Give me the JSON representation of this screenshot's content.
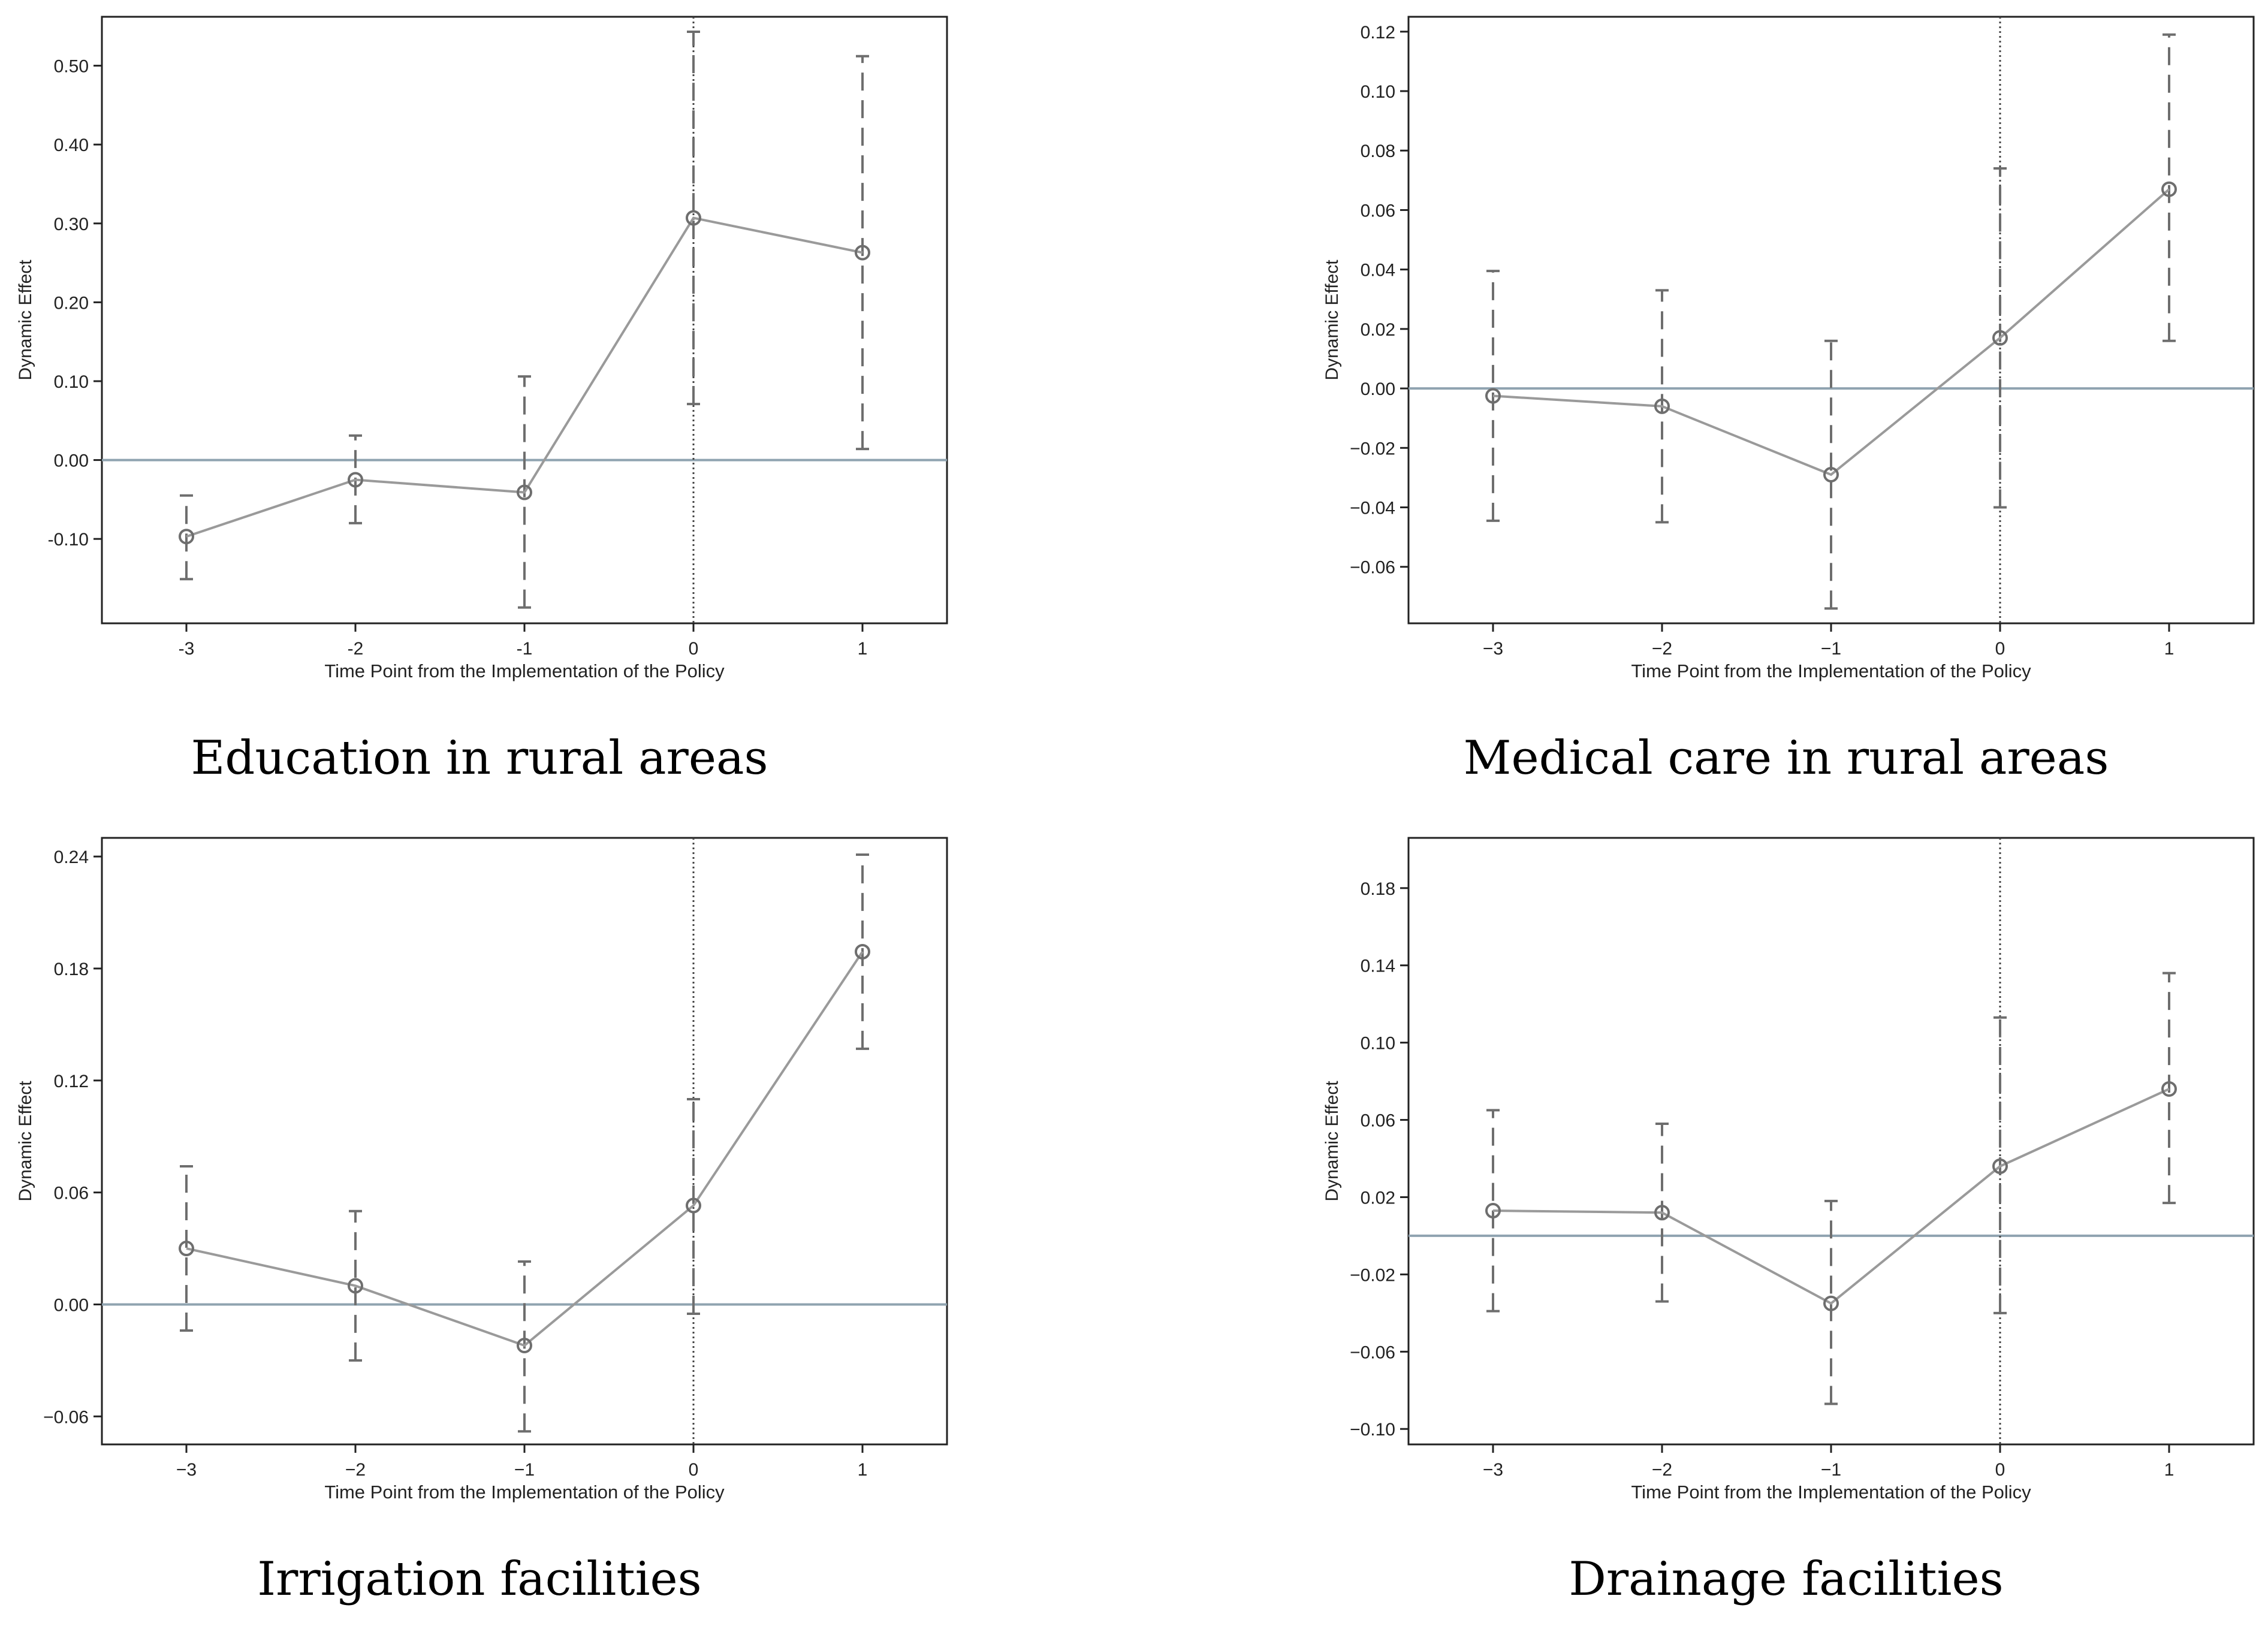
{
  "chart_data": [
    {
      "type": "line",
      "caption": "Education in rural areas",
      "xlabel": "Time Point from the Implementation of the Policy",
      "ylabel": "Dynamic Effect",
      "x": [
        -3,
        -2,
        -1,
        0,
        1
      ],
      "x_tick_labels": [
        "-3",
        "-2",
        "-1",
        "0",
        "1"
      ],
      "y": [
        -0.097,
        -0.025,
        -0.041,
        0.307,
        0.263
      ],
      "ci_low": [
        -0.151,
        -0.08,
        -0.187,
        0.071,
        0.014
      ],
      "ci_high": [
        -0.045,
        0.031,
        0.106,
        0.543,
        0.512
      ],
      "yticks": [
        -0.1,
        0.0,
        0.1,
        0.2,
        0.3,
        0.4,
        0.5
      ],
      "y_tick_labels": [
        "-0.10",
        "0.00",
        "0.10",
        "0.20",
        "0.30",
        "0.40",
        "0.50"
      ],
      "ylim": [
        -0.207,
        0.562
      ],
      "xlim": [
        -3.5,
        1.5
      ],
      "zero_line": 0,
      "policy_line_x": 0,
      "grid": false
    },
    {
      "type": "line",
      "caption": "Medical care in rural areas",
      "xlabel": "Time Point from the Implementation of the Policy",
      "ylabel": "Dynamic Effect",
      "x": [
        -3,
        -2,
        -1,
        0,
        1
      ],
      "x_tick_labels": [
        "−3",
        "−2",
        "−1",
        "0",
        "1"
      ],
      "y": [
        -0.0025,
        -0.006,
        -0.029,
        0.017,
        0.067
      ],
      "ci_low": [
        -0.0445,
        -0.045,
        -0.074,
        -0.04,
        0.016
      ],
      "ci_high": [
        0.0395,
        0.033,
        0.016,
        0.074,
        0.119
      ],
      "yticks": [
        -0.06,
        -0.04,
        -0.02,
        0.0,
        0.02,
        0.04,
        0.06,
        0.08,
        0.1,
        0.12
      ],
      "y_tick_labels": [
        "−0.06",
        "−0.04",
        "−0.02",
        "0.00",
        "0.02",
        "0.04",
        "0.06",
        "0.08",
        "0.10",
        "0.12"
      ],
      "ylim": [
        -0.079,
        0.125
      ],
      "xlim": [
        -3.5,
        1.5
      ],
      "zero_line": 0,
      "policy_line_x": 0,
      "grid": false
    },
    {
      "type": "line",
      "caption": "Irrigation facilities",
      "xlabel": "Time Point from the Implementation of the Policy",
      "ylabel": "Dynamic Effect",
      "x": [
        -3,
        -2,
        -1,
        0,
        1
      ],
      "x_tick_labels": [
        "−3",
        "−2",
        "−1",
        "0",
        "1"
      ],
      "y": [
        0.03,
        0.01,
        -0.022,
        0.053,
        0.189
      ],
      "ci_low": [
        -0.014,
        -0.03,
        -0.068,
        -0.005,
        0.137
      ],
      "ci_high": [
        0.074,
        0.05,
        0.023,
        0.11,
        0.241
      ],
      "yticks": [
        -0.06,
        0.0,
        0.06,
        0.12,
        0.18,
        0.24
      ],
      "y_tick_labels": [
        "−0.06",
        "0.00",
        "0.06",
        "0.12",
        "0.18",
        "0.24"
      ],
      "ylim": [
        -0.075,
        0.25
      ],
      "xlim": [
        -3.5,
        1.5
      ],
      "zero_line": 0,
      "policy_line_x": 0,
      "grid": false
    },
    {
      "type": "line",
      "caption": "Drainage facilities",
      "xlabel": "Time Point from the Implementation of the Policy",
      "ylabel": "Dynamic Effect",
      "x": [
        -3,
        -2,
        -1,
        0,
        1
      ],
      "x_tick_labels": [
        "−3",
        "−2",
        "−1",
        "0",
        "1"
      ],
      "y": [
        0.013,
        0.012,
        -0.035,
        0.036,
        0.076
      ],
      "ci_low": [
        -0.039,
        -0.034,
        -0.087,
        -0.04,
        0.017
      ],
      "ci_high": [
        0.065,
        0.058,
        0.018,
        0.113,
        0.136
      ],
      "yticks": [
        -0.1,
        -0.06,
        -0.02,
        0.02,
        0.06,
        0.1,
        0.14,
        0.18
      ],
      "y_tick_labels": [
        "−0.10",
        "−0.06",
        "−0.02",
        "0.02",
        "0.06",
        "0.10",
        "0.14",
        "0.18"
      ],
      "ylim": [
        -0.108,
        0.206
      ],
      "xlim": [
        -3.5,
        1.5
      ],
      "zero_line": 0,
      "policy_line_x": 0,
      "grid": false
    }
  ],
  "colors": {
    "line": "#9a9a9a",
    "marker": "#6e6e6e",
    "ci": "#6e6e6e",
    "zero_line": "#8fa3b0",
    "policy_line": "#444444",
    "axis": "#222222"
  }
}
